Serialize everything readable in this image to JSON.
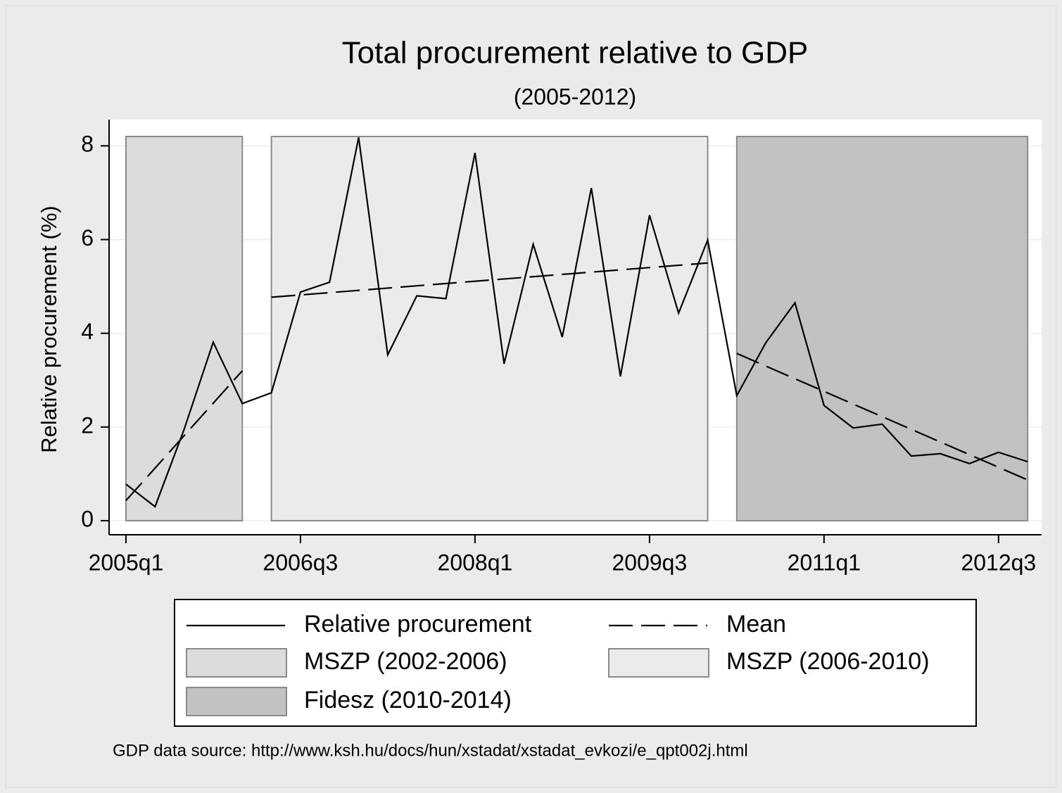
{
  "chart_data": {
    "type": "line",
    "title": "Total procurement relative to GDP",
    "subtitle": "(2005-2012)",
    "y_label": "Relative procurement (%)",
    "source": "GDP data source: http://www.ksh.hu/docs/hun/xstadat/xstadat_evkozi/e_qpt002j.html",
    "x": [
      2005,
      2005.25,
      2005.5,
      2005.75,
      2006,
      2006.25,
      2006.5,
      2006.75,
      2007,
      2007.25,
      2007.5,
      2007.75,
      2008,
      2008.25,
      2008.5,
      2008.75,
      2009,
      2009.25,
      2009.5,
      2009.75,
      2010,
      2010.25,
      2010.5,
      2010.75,
      2011,
      2011.25,
      2011.5,
      2011.75,
      2012,
      2012.25,
      2012.5,
      2012.75
    ],
    "series": [
      {
        "name": "Relative procurement",
        "color": "#000000",
        "values": [
          0.78,
          0.3,
          1.95,
          3.81,
          2.5,
          2.73,
          4.88,
          5.09,
          8.18,
          3.54,
          4.8,
          4.74,
          7.85,
          3.35,
          5.9,
          3.92,
          7.1,
          3.08,
          6.52,
          4.43,
          5.99,
          2.67,
          3.8,
          4.65,
          2.46,
          1.98,
          2.06,
          1.38,
          1.43,
          1.22,
          1.46,
          1.26
        ]
      }
    ],
    "mean": {
      "name": "Mean",
      "color": "#000000",
      "segments": [
        {
          "x": [
            2005,
            2006
          ],
          "values": [
            0.43,
            3.2
          ]
        },
        {
          "x": [
            2006.25,
            2010
          ],
          "values": [
            4.77,
            5.5
          ]
        },
        {
          "x": [
            2010.25,
            2012.75
          ],
          "values": [
            3.57,
            0.87
          ]
        }
      ]
    },
    "periods": [
      {
        "name": "MSZP (2002-2006)",
        "color": "#dcdcdc",
        "x": [
          2005,
          2006
        ],
        "y": [
          0,
          8.2
        ]
      },
      {
        "name": "MSZP (2006-2010)",
        "color": "#ebebeb",
        "x": [
          2006.25,
          2010
        ],
        "y": [
          0,
          8.2
        ]
      },
      {
        "name": "Fidesz (2010-2014)",
        "color": "#c2c2c2",
        "x": [
          2010.25,
          2012.75
        ],
        "y": [
          0,
          8.2
        ]
      }
    ],
    "xlim": [
      2004.855,
      2012.87
    ],
    "ylim": [
      -0.3,
      8.56
    ],
    "xticks": [
      {
        "value": 2005,
        "label": "2005q1"
      },
      {
        "value": 2006.5,
        "label": "2006q3"
      },
      {
        "value": 2008,
        "label": "2008q1"
      },
      {
        "value": 2009.5,
        "label": "2009q3"
      },
      {
        "value": 2011,
        "label": "2011q1"
      },
      {
        "value": 2012.5,
        "label": "2012q3"
      }
    ],
    "yticks": [
      0,
      2,
      4,
      6,
      8
    ],
    "grid": true
  }
}
